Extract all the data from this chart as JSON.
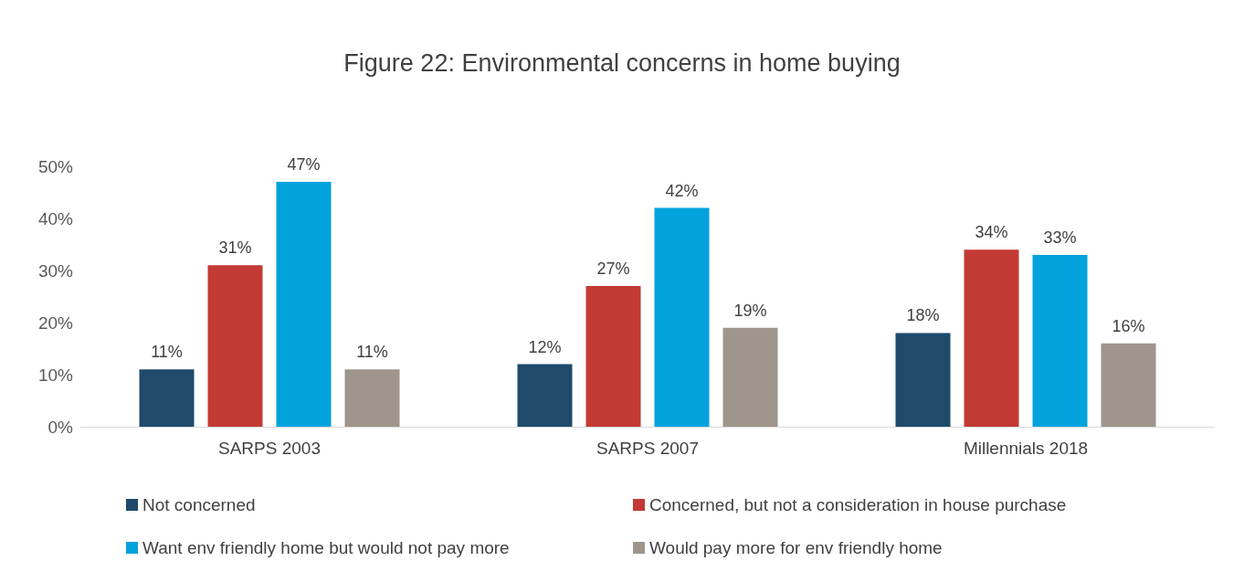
{
  "chart_data": {
    "type": "bar",
    "title": "Figure 22: Environmental concerns in home buying",
    "categories": [
      "SARPS 2003",
      "SARPS 2007",
      "Millennials 2018"
    ],
    "series": [
      {
        "name": "Not concerned",
        "color": "#1f4a6b",
        "values": [
          11,
          12,
          18
        ],
        "value_labels": [
          "11%",
          "12%",
          "18%"
        ]
      },
      {
        "name": "Concerned, but not a consideration in house purchase",
        "color": "#c23a33",
        "values": [
          31,
          27,
          34
        ],
        "value_labels": [
          "31%",
          "27%",
          "34%"
        ]
      },
      {
        "name": "Want env friendly home but would not pay more",
        "color": "#02a2dd",
        "values": [
          47,
          42,
          33
        ],
        "value_labels": [
          "47%",
          "42%",
          "33%"
        ]
      },
      {
        "name": "Would pay more for env friendly home",
        "color": "#9e968c",
        "values": [
          11,
          19,
          16
        ],
        "value_labels": [
          "11%",
          "19%",
          "16%"
        ]
      }
    ],
    "ylim": [
      0,
      50
    ],
    "yticks": [
      {
        "value": 0,
        "label": "0%"
      },
      {
        "value": 10,
        "label": "10%"
      },
      {
        "value": 20,
        "label": "20%"
      },
      {
        "value": 30,
        "label": "30%"
      },
      {
        "value": 40,
        "label": "40%"
      },
      {
        "value": 50,
        "label": "50%"
      }
    ],
    "grid": false,
    "legend": "bottom"
  }
}
